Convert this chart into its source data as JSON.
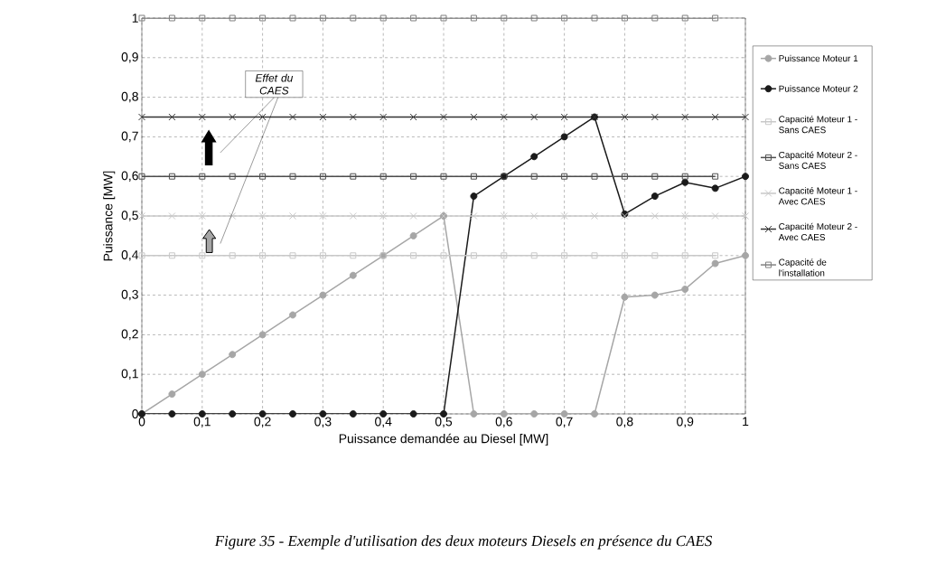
{
  "chart_data": {
    "type": "line",
    "xlabel": "Puissance demandée au Diesel [MW]",
    "ylabel": "Puissance [MW]",
    "x": [
      0,
      0.05,
      0.1,
      0.15,
      0.2,
      0.25,
      0.3,
      0.35,
      0.4,
      0.45,
      0.5,
      0.55,
      0.6,
      0.65,
      0.7,
      0.75,
      0.8,
      0.85,
      0.9,
      0.95,
      1
    ],
    "series": [
      {
        "name": "Puissance Moteur 1",
        "color": "#a6a6a6",
        "marker": "circle",
        "values": [
          0,
          0.05,
          0.1,
          0.15,
          0.2,
          0.25,
          0.3,
          0.35,
          0.4,
          0.45,
          0.5,
          0,
          0,
          0,
          0,
          0,
          0.295,
          0.3,
          0.315,
          0.38,
          0.4
        ]
      },
      {
        "name": "Puissance Moteur 2",
        "color": "#1a1a1a",
        "marker": "circle",
        "values": [
          0,
          0,
          0,
          0,
          0,
          0,
          0,
          0,
          0,
          0,
          0,
          0.55,
          0.6,
          0.65,
          0.7,
          0.75,
          0.505,
          0.55,
          0.585,
          0.57,
          0.6
        ]
      },
      {
        "name": "Capacité Moteur 1 - Sans CAES",
        "color": "#c8c8c8",
        "marker": "square",
        "values": [
          0.4,
          0.4,
          0.4,
          0.4,
          0.4,
          0.4,
          0.4,
          0.4,
          0.4,
          0.4,
          0.4,
          0.4,
          0.4,
          0.4,
          0.4,
          0.4,
          0.4,
          0.4,
          0.4,
          0.4,
          null
        ]
      },
      {
        "name": "Capacité Moteur 2 - Sans CAES",
        "color": "#4d4d4d",
        "marker": "square",
        "values": [
          0.6,
          0.6,
          0.6,
          0.6,
          0.6,
          0.6,
          0.6,
          0.6,
          0.6,
          0.6,
          0.6,
          0.6,
          0.6,
          0.6,
          0.6,
          0.6,
          0.6,
          0.6,
          0.6,
          0.6,
          null
        ]
      },
      {
        "name": "Capacité Moteur 1 - Avec CAES",
        "color": "#c8c8c8",
        "marker": "cross",
        "values": [
          0.5,
          0.5,
          0.5,
          0.5,
          0.5,
          0.5,
          0.5,
          0.5,
          0.5,
          0.5,
          0.5,
          0.5,
          0.5,
          0.5,
          0.5,
          0.5,
          0.5,
          0.5,
          0.5,
          0.5,
          0.5
        ]
      },
      {
        "name": "Capacité Moteur 2 - Avec CAES",
        "color": "#333333",
        "marker": "cross",
        "values": [
          0.75,
          0.75,
          0.75,
          0.75,
          0.75,
          0.75,
          0.75,
          0.75,
          0.75,
          0.75,
          0.75,
          0.75,
          0.75,
          0.75,
          0.75,
          0.75,
          0.75,
          0.75,
          0.75,
          0.75,
          0.75
        ]
      },
      {
        "name": "Capacité de l'installation",
        "color": "#808080",
        "marker": "square",
        "values": [
          1,
          1,
          1,
          1,
          1,
          1,
          1,
          1,
          1,
          1,
          1,
          1,
          1,
          1,
          1,
          1,
          1,
          1,
          1,
          1,
          null
        ]
      }
    ],
    "xlim": [
      0,
      1
    ],
    "ylim": [
      0,
      1
    ],
    "xticks": [
      {
        "value": 0,
        "label": "0"
      },
      {
        "value": 0.1,
        "label": "0,1"
      },
      {
        "value": 0.2,
        "label": "0,2"
      },
      {
        "value": 0.3,
        "label": "0,3"
      },
      {
        "value": 0.4,
        "label": "0,4"
      },
      {
        "value": 0.5,
        "label": "0,5"
      },
      {
        "value": 0.6,
        "label": "0,6"
      },
      {
        "value": 0.7,
        "label": "0,7"
      },
      {
        "value": 0.8,
        "label": "0,8"
      },
      {
        "value": 0.9,
        "label": "0,9"
      },
      {
        "value": 1,
        "label": "1"
      }
    ],
    "yticks": [
      {
        "value": 0,
        "label": "0"
      },
      {
        "value": 0.1,
        "label": "0,1"
      },
      {
        "value": 0.2,
        "label": "0,2"
      },
      {
        "value": 0.3,
        "label": "0,3"
      },
      {
        "value": 0.4,
        "label": "0,4"
      },
      {
        "value": 0.5,
        "label": "0,5"
      },
      {
        "value": 0.6,
        "label": "0,6"
      },
      {
        "value": 0.7,
        "label": "0,7"
      },
      {
        "value": 0.8,
        "label": "0,8"
      },
      {
        "value": 0.9,
        "label": "0,9"
      },
      {
        "value": 1,
        "label": "1"
      }
    ],
    "grid": true,
    "legend": "right",
    "annotations": [
      "Effet du CAES",
      "Figure 35 - Exemple d'utilisation des deux moteurs Diesels en présence du CAES"
    ]
  }
}
